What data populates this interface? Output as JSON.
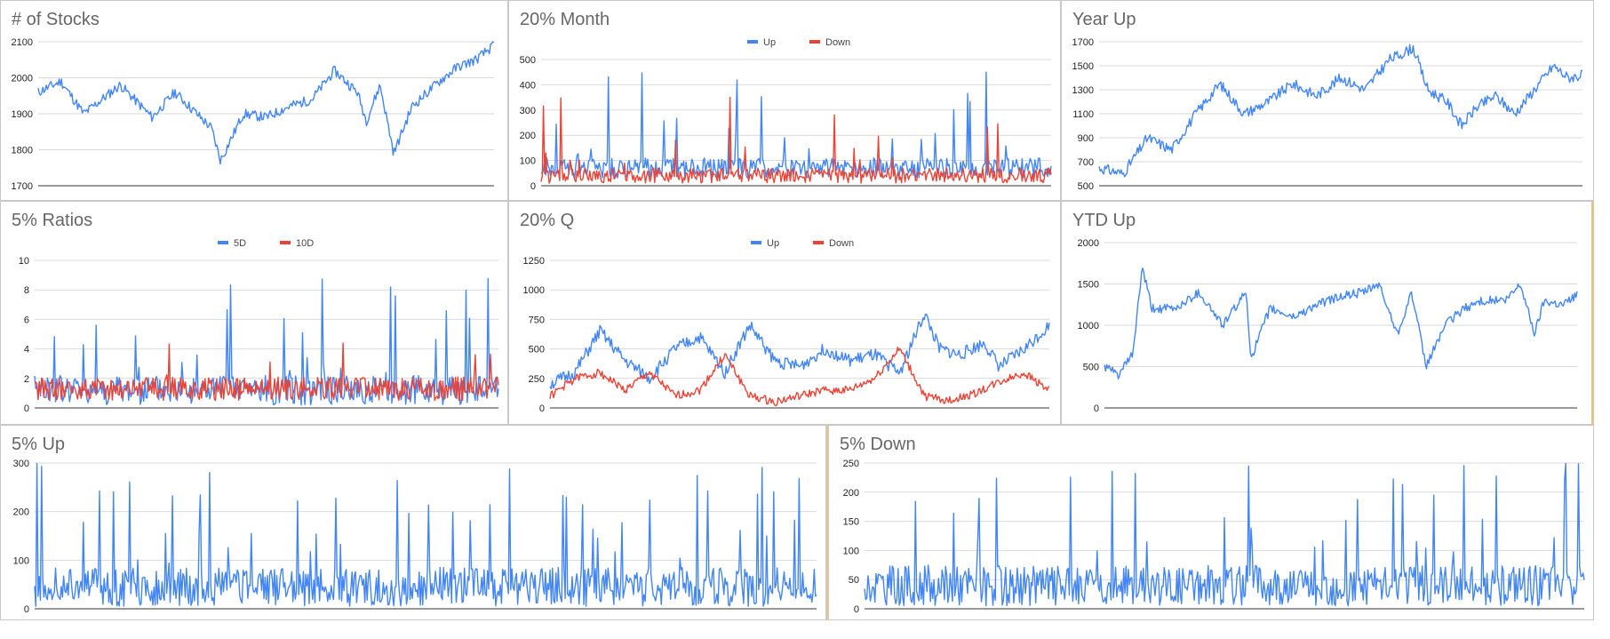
{
  "colors": {
    "blue": "#4285f4",
    "red": "#ea4335",
    "grid": "#d9d9d9",
    "axis": "#333333",
    "tick": "#222222"
  },
  "chart_data": [
    {
      "id": "stocks",
      "type": "line",
      "title": "# of Stocks",
      "ylim": [
        1700,
        2100
      ],
      "yticks": [
        "1700",
        "1800",
        "1900",
        "2000",
        "2100"
      ],
      "legend": null,
      "series": [
        {
          "color": "#4285f4",
          "seed": 11,
          "gen": "walk",
          "anchors": [
            [
              0,
              1960
            ],
            [
              0.05,
              1990
            ],
            [
              0.1,
              1900
            ],
            [
              0.18,
              1980
            ],
            [
              0.25,
              1890
            ],
            [
              0.3,
              1960
            ],
            [
              0.38,
              1860
            ],
            [
              0.4,
              1770
            ],
            [
              0.45,
              1900
            ],
            [
              0.5,
              1890
            ],
            [
              0.55,
              1920
            ],
            [
              0.6,
              1940
            ],
            [
              0.65,
              2020
            ],
            [
              0.7,
              1960
            ],
            [
              0.72,
              1880
            ],
            [
              0.75,
              1980
            ],
            [
              0.78,
              1790
            ],
            [
              0.82,
              1920
            ],
            [
              0.88,
              1990
            ],
            [
              0.92,
              2030
            ],
            [
              0.96,
              2050
            ],
            [
              1,
              2090
            ]
          ],
          "noise": 14
        }
      ]
    },
    {
      "id": "month20",
      "type": "line",
      "title": "20% Month",
      "ylim": [
        0,
        500
      ],
      "yticks": [
        "0",
        "100",
        "200",
        "300",
        "400",
        "500"
      ],
      "legend": [
        "Up",
        "Down"
      ],
      "series": [
        {
          "name": "Up",
          "color": "#4285f4",
          "seed": 21,
          "gen": "spiky",
          "base": 70,
          "noise": 40,
          "spike": 0.05,
          "spikeMax": 480
        },
        {
          "name": "Down",
          "color": "#ea4335",
          "seed": 22,
          "gen": "spiky",
          "base": 40,
          "noise": 30,
          "spike": 0.04,
          "spikeMax": 380
        }
      ]
    },
    {
      "id": "yearup",
      "type": "line",
      "title": "Year Up",
      "ylim": [
        500,
        1700
      ],
      "yticks": [
        "500",
        "700",
        "900",
        "1100",
        "1300",
        "1500",
        "1700"
      ],
      "legend": null,
      "series": [
        {
          "color": "#4285f4",
          "seed": 31,
          "gen": "walk",
          "anchors": [
            [
              0,
              650
            ],
            [
              0.05,
              600
            ],
            [
              0.1,
              900
            ],
            [
              0.15,
              800
            ],
            [
              0.2,
              1100
            ],
            [
              0.25,
              1350
            ],
            [
              0.3,
              1100
            ],
            [
              0.35,
              1200
            ],
            [
              0.4,
              1350
            ],
            [
              0.45,
              1250
            ],
            [
              0.5,
              1400
            ],
            [
              0.55,
              1300
            ],
            [
              0.6,
              1550
            ],
            [
              0.65,
              1650
            ],
            [
              0.68,
              1300
            ],
            [
              0.72,
              1200
            ],
            [
              0.75,
              1000
            ],
            [
              0.78,
              1150
            ],
            [
              0.82,
              1250
            ],
            [
              0.86,
              1100
            ],
            [
              0.9,
              1300
            ],
            [
              0.94,
              1500
            ],
            [
              0.97,
              1400
            ],
            [
              1,
              1420
            ]
          ],
          "noise": 45
        }
      ]
    },
    {
      "id": "ratios5",
      "type": "line",
      "title": "5% Ratios",
      "ylim": [
        0,
        10
      ],
      "yticks": [
        "0",
        "2",
        "4",
        "6",
        "8",
        "10"
      ],
      "legend": [
        "5D",
        "10D"
      ],
      "series": [
        {
          "name": "5D",
          "color": "#4285f4",
          "seed": 41,
          "gen": "spiky",
          "base": 1.2,
          "noise": 1.0,
          "spike": 0.06,
          "spikeMax": 9.5
        },
        {
          "name": "10D",
          "color": "#ea4335",
          "seed": 42,
          "gen": "spiky",
          "base": 1.3,
          "noise": 0.8,
          "spike": 0.05,
          "spikeMax": 5
        }
      ]
    },
    {
      "id": "q20",
      "type": "line",
      "title": "20% Q",
      "ylim": [
        0,
        1250
      ],
      "yticks": [
        "0",
        "250",
        "500",
        "750",
        "1000",
        "1250"
      ],
      "legend": [
        "Up",
        "Down"
      ],
      "series": [
        {
          "name": "Up",
          "color": "#4285f4",
          "seed": 51,
          "gen": "walk",
          "anchors": [
            [
              0,
              200
            ],
            [
              0.05,
              300
            ],
            [
              0.1,
              650
            ],
            [
              0.15,
              400
            ],
            [
              0.2,
              250
            ],
            [
              0.25,
              500
            ],
            [
              0.3,
              600
            ],
            [
              0.35,
              300
            ],
            [
              0.4,
              700
            ],
            [
              0.45,
              400
            ],
            [
              0.5,
              350
            ],
            [
              0.55,
              500
            ],
            [
              0.6,
              400
            ],
            [
              0.65,
              450
            ],
            [
              0.7,
              300
            ],
            [
              0.75,
              800
            ],
            [
              0.78,
              500
            ],
            [
              0.82,
              450
            ],
            [
              0.87,
              550
            ],
            [
              0.9,
              350
            ],
            [
              0.95,
              500
            ],
            [
              1,
              700
            ]
          ],
          "noise": 55
        },
        {
          "name": "Down",
          "color": "#ea4335",
          "seed": 52,
          "gen": "walk",
          "anchors": [
            [
              0,
              100
            ],
            [
              0.05,
              250
            ],
            [
              0.1,
              300
            ],
            [
              0.15,
              150
            ],
            [
              0.2,
              300
            ],
            [
              0.25,
              100
            ],
            [
              0.3,
              150
            ],
            [
              0.35,
              450
            ],
            [
              0.4,
              100
            ],
            [
              0.45,
              50
            ],
            [
              0.5,
              100
            ],
            [
              0.55,
              150
            ],
            [
              0.6,
              150
            ],
            [
              0.65,
              250
            ],
            [
              0.7,
              500
            ],
            [
              0.75,
              100
            ],
            [
              0.8,
              60
            ],
            [
              0.85,
              120
            ],
            [
              0.9,
              220
            ],
            [
              0.95,
              300
            ],
            [
              1,
              150
            ]
          ],
          "noise": 35
        }
      ]
    },
    {
      "id": "ytdup",
      "type": "line",
      "title": "YTD Up",
      "ylim": [
        0,
        2000
      ],
      "yticks": [
        "0",
        "500",
        "1000",
        "1500",
        "2000"
      ],
      "legend": null,
      "series": [
        {
          "color": "#4285f4",
          "seed": 61,
          "gen": "walk",
          "anchors": [
            [
              0,
              500
            ],
            [
              0.03,
              400
            ],
            [
              0.06,
              650
            ],
            [
              0.08,
              1700
            ],
            [
              0.1,
              1200
            ],
            [
              0.15,
              1200
            ],
            [
              0.2,
              1400
            ],
            [
              0.25,
              1000
            ],
            [
              0.3,
              1400
            ],
            [
              0.31,
              600
            ],
            [
              0.35,
              1200
            ],
            [
              0.4,
              1100
            ],
            [
              0.45,
              1250
            ],
            [
              0.5,
              1350
            ],
            [
              0.55,
              1400
            ],
            [
              0.58,
              1500
            ],
            [
              0.62,
              900
            ],
            [
              0.65,
              1400
            ],
            [
              0.68,
              500
            ],
            [
              0.72,
              1000
            ],
            [
              0.76,
              1200
            ],
            [
              0.8,
              1300
            ],
            [
              0.85,
              1300
            ],
            [
              0.88,
              1500
            ],
            [
              0.91,
              900
            ],
            [
              0.93,
              1300
            ],
            [
              0.97,
              1250
            ],
            [
              1,
              1380
            ]
          ],
          "noise": 55
        }
      ]
    },
    {
      "id": "up5",
      "type": "line",
      "title": "5% Up",
      "ylim": [
        0,
        300
      ],
      "yticks": [
        "0",
        "100",
        "200",
        "300"
      ],
      "legend": null,
      "series": [
        {
          "color": "#4285f4",
          "seed": 71,
          "gen": "spiky",
          "base": 45,
          "noise": 40,
          "spike": 0.06,
          "spikeMax": 300
        }
      ]
    },
    {
      "id": "down5",
      "type": "line",
      "title": "5% Down",
      "ylim": [
        0,
        250
      ],
      "yticks": [
        "0",
        "50",
        "100",
        "150",
        "200",
        "250"
      ],
      "legend": null,
      "series": [
        {
          "color": "#4285f4",
          "seed": 81,
          "gen": "spiky",
          "base": 40,
          "noise": 35,
          "spike": 0.07,
          "spikeMax": 250
        }
      ]
    }
  ]
}
